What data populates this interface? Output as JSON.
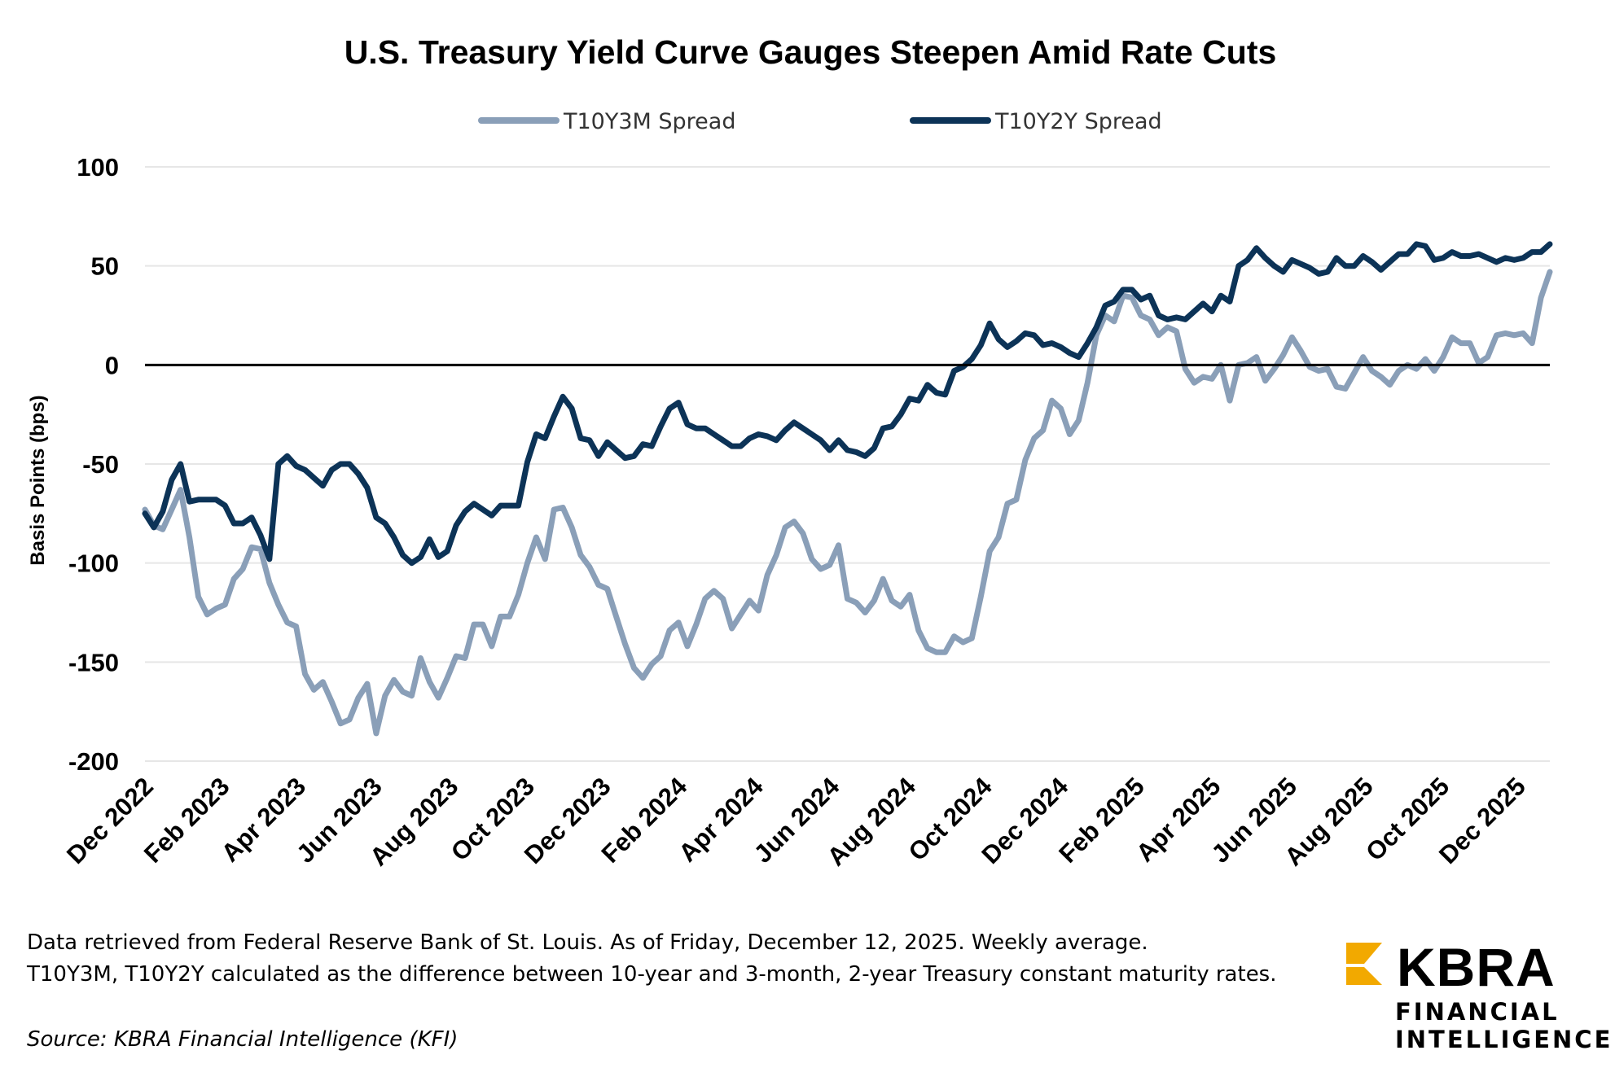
{
  "chart_data": {
    "type": "line",
    "title": "U.S. Treasury Yield Curve Gauges Steepen Amid Rate Cuts",
    "xlabel": "",
    "ylabel": "Basis Points (bps)",
    "ylim": [
      -200,
      100
    ],
    "yticks": [
      100,
      50,
      0,
      -50,
      -100,
      -150,
      -200
    ],
    "grid": true,
    "legend_position": "top",
    "x_tick_labels": [
      "Dec 2022",
      "Feb 2023",
      "Apr 2023",
      "Jun 2023",
      "Aug 2023",
      "Oct 2023",
      "Dec 2023",
      "Feb 2024",
      "Apr 2024",
      "Jun 2024",
      "Aug 2024",
      "Oct 2024",
      "Dec 2024",
      "Feb 2025",
      "Apr 2025",
      "Jun 2025",
      "Aug 2025",
      "Oct 2025",
      "Dec 2025"
    ],
    "series": [
      {
        "name": "T10Y3M Spread",
        "color": "#8a9fb8",
        "values": [
          -73,
          -81,
          -83,
          -73,
          -63,
          -87,
          -117,
          -126,
          -123,
          -121,
          -108,
          -103,
          -92,
          -93,
          -110,
          -121,
          -130,
          -132,
          -156,
          -164,
          -160,
          -170,
          -181,
          -179,
          -168,
          -161,
          -186,
          -167,
          -159,
          -165,
          -167,
          -148,
          -160,
          -168,
          -158,
          -147,
          -148,
          -131,
          -131,
          -142,
          -127,
          -127,
          -116,
          -100,
          -87,
          -98,
          -73,
          -72,
          -82,
          -96,
          -102,
          -111,
          -113,
          -127,
          -141,
          -153,
          -158,
          -151,
          -147,
          -134,
          -130,
          -142,
          -131,
          -118,
          -114,
          -118,
          -133,
          -126,
          -119,
          -124,
          -106,
          -96,
          -82,
          -79,
          -85,
          -98,
          -103,
          -101,
          -91,
          -118,
          -120,
          -125,
          -119,
          -108,
          -119,
          -122,
          -116,
          -134,
          -143,
          -145,
          -145,
          -137,
          -140,
          -138,
          -117,
          -94,
          -87,
          -70,
          -68,
          -48,
          -37,
          -33,
          -18,
          -22,
          -35,
          -28,
          -9,
          15,
          25,
          22,
          35,
          34,
          25,
          23,
          15,
          19,
          17,
          -2,
          -9,
          -6,
          -7,
          0,
          -18,
          0,
          1,
          4,
          -8,
          -2,
          5,
          14,
          7,
          -1,
          -3,
          -2,
          -11,
          -12,
          -4,
          4,
          -3,
          -6,
          -10,
          -3,
          0,
          -2,
          3,
          -3,
          4,
          14,
          11,
          11,
          1,
          4,
          15,
          16,
          15,
          16,
          11,
          34,
          47
        ]
      },
      {
        "name": "T10Y2Y Spread",
        "color": "#0c3357",
        "values": [
          -75,
          -82,
          -74,
          -58,
          -50,
          -69,
          -68,
          -68,
          -68,
          -71,
          -80,
          -80,
          -77,
          -86,
          -98,
          -50,
          -46,
          -51,
          -53,
          -57,
          -61,
          -53,
          -50,
          -50,
          -55,
          -62,
          -77,
          -80,
          -87,
          -96,
          -100,
          -97,
          -88,
          -97,
          -94,
          -81,
          -74,
          -70,
          -73,
          -76,
          -71,
          -71,
          -71,
          -49,
          -35,
          -37,
          -26,
          -16,
          -22,
          -37,
          -38,
          -46,
          -39,
          -43,
          -47,
          -46,
          -40,
          -41,
          -31,
          -22,
          -19,
          -30,
          -32,
          -32,
          -35,
          -38,
          -41,
          -41,
          -37,
          -35,
          -36,
          -38,
          -33,
          -29,
          -32,
          -35,
          -38,
          -43,
          -38,
          -43,
          -44,
          -46,
          -42,
          -32,
          -31,
          -25,
          -17,
          -18,
          -10,
          -14,
          -15,
          -3,
          -1,
          3,
          10,
          21,
          13,
          9,
          12,
          16,
          15,
          10,
          11,
          9,
          6,
          4,
          11,
          19,
          30,
          32,
          38,
          38,
          33,
          35,
          25,
          23,
          24,
          23,
          27,
          31,
          27,
          35,
          32,
          50,
          53,
          59,
          54,
          50,
          47,
          53,
          51,
          49,
          46,
          47,
          54,
          50,
          50,
          55,
          52,
          48,
          52,
          56,
          56,
          61,
          60,
          53,
          54,
          57,
          55,
          55,
          56,
          54,
          52,
          54,
          53,
          54,
          57,
          57,
          61
        ]
      }
    ]
  },
  "footnote": {
    "line1": "Data retrieved from Federal Reserve Bank of St. Louis. As of Friday, December 12, 2025. Weekly average.",
    "line2": "T10Y3M, T10Y2Y calculated as the difference between 10-year and 3-month, 2-year Treasury constant maturity rates.",
    "source": "Source: KBRA Financial Intelligence (KFI)"
  },
  "logo": {
    "brand": "KBRA",
    "line1": "FINANCIAL",
    "line2": "INTELLIGENCE",
    "accent_color": "#f2a900"
  }
}
